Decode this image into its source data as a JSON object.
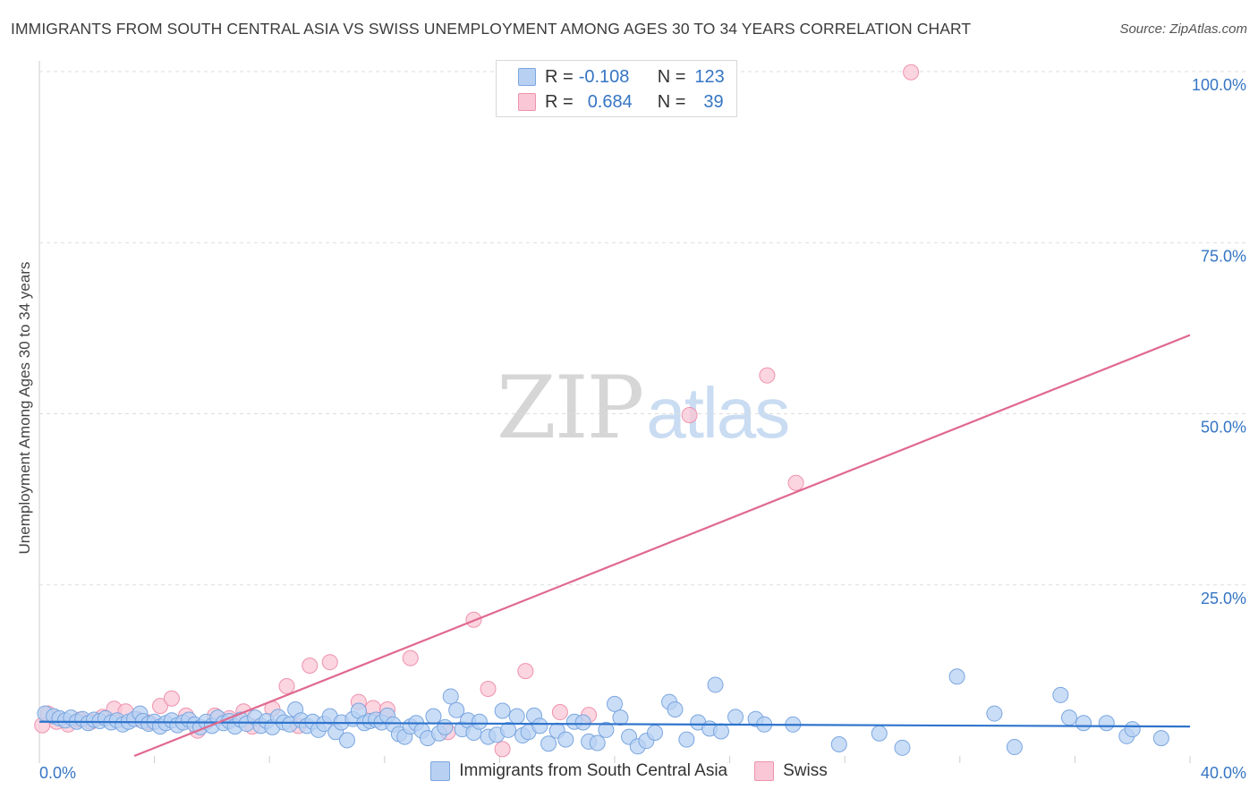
{
  "header": {
    "title": "IMMIGRANTS FROM SOUTH CENTRAL ASIA VS SWISS UNEMPLOYMENT AMONG AGES 30 TO 34 YEARS CORRELATION CHART",
    "source": "Source: ZipAtlas.com"
  },
  "watermark": {
    "zip": "ZIP",
    "atlas": "atlas"
  },
  "stats": {
    "r_label": "R =",
    "n_label": "N =",
    "blue": {
      "r": "-0.108",
      "n": "123"
    },
    "pink": {
      "r": "0.684",
      "n": "39"
    }
  },
  "legend": {
    "blue_label": "Immigrants from South Central Asia",
    "pink_label": "Swiss"
  },
  "colors": {
    "blue_fill": "#b8d1f3",
    "blue_stroke": "#7aa6e0",
    "blue_line": "#2f74cc",
    "pink_fill": "#f9c7d6",
    "pink_stroke": "#ef92ae",
    "pink_line": "#e0688f",
    "axis_text": "#3575c4",
    "grid": "#dddddd"
  },
  "chart_data": {
    "type": "scatter",
    "title": "IMMIGRANTS FROM SOUTH CENTRAL ASIA VS SWISS UNEMPLOYMENT AMONG AGES 30 TO 34 YEARS CORRELATION CHART",
    "xlabel": "",
    "ylabel": "Unemployment Among Ages 30 to 34 years",
    "xlim": [
      0,
      40
    ],
    "ylim": [
      0,
      100
    ],
    "x_tick_labels": [
      "0.0%",
      "40.0%"
    ],
    "y_ticks": [
      25,
      50,
      75,
      100
    ],
    "y_tick_labels": [
      "25.0%",
      "50.0%",
      "75.0%",
      "100.0%"
    ],
    "grid": true,
    "series": [
      {
        "name": "Immigrants from South Central Asia",
        "color": "#b8d1f3",
        "trend": {
          "x": [
            0,
            40
          ],
          "y": [
            5.0,
            4.3
          ]
        },
        "points": [
          [
            0.2,
            6.2
          ],
          [
            0.5,
            5.8
          ],
          [
            0.7,
            5.5
          ],
          [
            0.9,
            5.2
          ],
          [
            1.1,
            5.6
          ],
          [
            1.3,
            5.0
          ],
          [
            1.5,
            5.4
          ],
          [
            1.7,
            4.8
          ],
          [
            1.9,
            5.3
          ],
          [
            2.1,
            5.1
          ],
          [
            2.3,
            5.5
          ],
          [
            2.5,
            4.9
          ],
          [
            2.7,
            5.2
          ],
          [
            2.9,
            4.6
          ],
          [
            3.1,
            5.0
          ],
          [
            3.3,
            5.4
          ],
          [
            3.5,
            6.2
          ],
          [
            3.6,
            5.1
          ],
          [
            3.8,
            4.7
          ],
          [
            4.0,
            5.0
          ],
          [
            4.2,
            4.3
          ],
          [
            4.4,
            4.8
          ],
          [
            4.6,
            5.2
          ],
          [
            4.8,
            4.5
          ],
          [
            5.0,
            4.9
          ],
          [
            5.2,
            5.3
          ],
          [
            5.4,
            4.6
          ],
          [
            5.6,
            4.2
          ],
          [
            5.8,
            5.0
          ],
          [
            6.0,
            4.4
          ],
          [
            6.2,
            5.6
          ],
          [
            6.4,
            4.8
          ],
          [
            6.6,
            5.1
          ],
          [
            6.8,
            4.3
          ],
          [
            7.0,
            5.3
          ],
          [
            7.2,
            4.7
          ],
          [
            7.5,
            5.6
          ],
          [
            7.7,
            4.4
          ],
          [
            7.9,
            5.1
          ],
          [
            8.1,
            4.2
          ],
          [
            8.3,
            5.7
          ],
          [
            8.5,
            4.9
          ],
          [
            8.7,
            4.6
          ],
          [
            8.9,
            6.8
          ],
          [
            9.1,
            5.2
          ],
          [
            9.3,
            4.4
          ],
          [
            9.5,
            5.0
          ],
          [
            9.7,
            3.8
          ],
          [
            9.9,
            4.7
          ],
          [
            10.1,
            5.8
          ],
          [
            10.3,
            3.5
          ],
          [
            10.5,
            4.9
          ],
          [
            10.7,
            2.3
          ],
          [
            10.9,
            5.4
          ],
          [
            11.1,
            6.6
          ],
          [
            11.3,
            4.8
          ],
          [
            11.5,
            5.1
          ],
          [
            11.7,
            5.3
          ],
          [
            11.9,
            4.9
          ],
          [
            12.1,
            5.9
          ],
          [
            12.3,
            4.6
          ],
          [
            12.5,
            3.2
          ],
          [
            12.7,
            2.8
          ],
          [
            12.9,
            4.3
          ],
          [
            13.1,
            4.8
          ],
          [
            13.3,
            3.7
          ],
          [
            13.5,
            2.6
          ],
          [
            13.7,
            5.8
          ],
          [
            13.9,
            3.3
          ],
          [
            14.1,
            4.2
          ],
          [
            14.3,
            8.7
          ],
          [
            14.5,
            6.7
          ],
          [
            14.7,
            3.9
          ],
          [
            14.9,
            5.2
          ],
          [
            15.1,
            3.4
          ],
          [
            15.3,
            5.0
          ],
          [
            15.6,
            2.8
          ],
          [
            15.9,
            3.1
          ],
          [
            16.1,
            6.6
          ],
          [
            16.3,
            3.8
          ],
          [
            16.6,
            5.8
          ],
          [
            16.8,
            3.0
          ],
          [
            17.0,
            3.5
          ],
          [
            17.2,
            5.9
          ],
          [
            17.4,
            4.4
          ],
          [
            17.7,
            1.8
          ],
          [
            18.0,
            3.7
          ],
          [
            18.3,
            2.4
          ],
          [
            18.6,
            5.0
          ],
          [
            18.9,
            4.9
          ],
          [
            19.1,
            2.1
          ],
          [
            19.4,
            1.9
          ],
          [
            19.7,
            3.8
          ],
          [
            20.0,
            7.6
          ],
          [
            20.2,
            5.6
          ],
          [
            20.5,
            2.8
          ],
          [
            20.8,
            1.4
          ],
          [
            21.1,
            2.2
          ],
          [
            21.4,
            3.4
          ],
          [
            21.9,
            7.9
          ],
          [
            22.1,
            6.8
          ],
          [
            22.5,
            2.4
          ],
          [
            22.9,
            4.9
          ],
          [
            23.3,
            4.0
          ],
          [
            23.5,
            10.4
          ],
          [
            23.7,
            3.6
          ],
          [
            24.2,
            5.7
          ],
          [
            24.9,
            5.4
          ],
          [
            25.2,
            4.6
          ],
          [
            26.2,
            4.6
          ],
          [
            27.8,
            1.7
          ],
          [
            29.2,
            3.3
          ],
          [
            30.0,
            1.2
          ],
          [
            31.9,
            11.6
          ],
          [
            33.2,
            6.2
          ],
          [
            33.9,
            1.3
          ],
          [
            35.5,
            8.9
          ],
          [
            35.8,
            5.6
          ],
          [
            36.3,
            4.8
          ],
          [
            37.1,
            4.8
          ],
          [
            37.8,
            2.9
          ],
          [
            38.0,
            3.9
          ],
          [
            39.0,
            2.6
          ]
        ]
      },
      {
        "name": "Swiss",
        "color": "#f9c7d6",
        "trend": {
          "x": [
            3.3,
            40
          ],
          "y": [
            0,
            61.5
          ]
        },
        "points": [
          [
            0.1,
            4.5
          ],
          [
            0.3,
            6.2
          ],
          [
            0.6,
            5.0
          ],
          [
            1.0,
            4.6
          ],
          [
            1.4,
            5.3
          ],
          [
            1.8,
            5.0
          ],
          [
            2.2,
            5.7
          ],
          [
            2.6,
            6.9
          ],
          [
            3.0,
            6.5
          ],
          [
            3.4,
            5.4
          ],
          [
            3.8,
            4.9
          ],
          [
            4.2,
            7.3
          ],
          [
            4.6,
            8.4
          ],
          [
            5.1,
            5.9
          ],
          [
            5.5,
            3.7
          ],
          [
            6.1,
            5.9
          ],
          [
            6.6,
            5.5
          ],
          [
            7.1,
            6.5
          ],
          [
            7.4,
            4.3
          ],
          [
            8.1,
            6.9
          ],
          [
            8.6,
            10.2
          ],
          [
            9.0,
            4.4
          ],
          [
            9.4,
            13.2
          ],
          [
            10.1,
            13.7
          ],
          [
            11.1,
            7.9
          ],
          [
            11.6,
            7.0
          ],
          [
            12.1,
            6.8
          ],
          [
            12.9,
            14.3
          ],
          [
            14.2,
            3.5
          ],
          [
            15.1,
            19.9
          ],
          [
            15.6,
            9.8
          ],
          [
            16.1,
            1.0
          ],
          [
            16.9,
            12.4
          ],
          [
            18.1,
            6.4
          ],
          [
            19.1,
            6.0
          ],
          [
            22.6,
            49.8
          ],
          [
            25.3,
            55.6
          ],
          [
            26.3,
            39.9
          ],
          [
            30.3,
            99.9
          ]
        ]
      }
    ]
  }
}
